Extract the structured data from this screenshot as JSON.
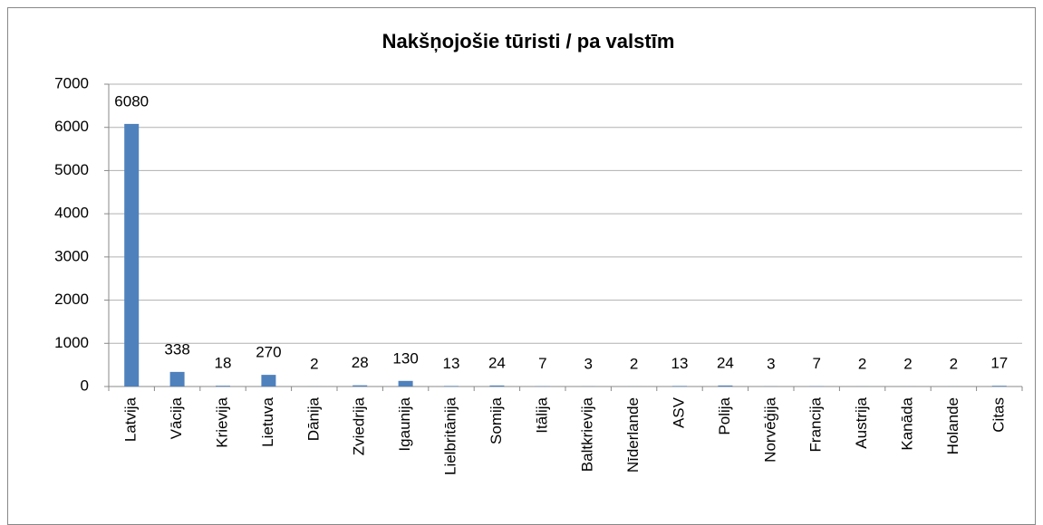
{
  "chart_data": {
    "type": "bar",
    "title": "Nakšņojošie tūristi / pa valstīm",
    "categories": [
      "Latvija",
      "Vācija",
      "Krievija",
      "Lietuva",
      "Dānija",
      "Zviedrija",
      "Igaunija",
      "Lielbritānija",
      "Somija",
      "Itālija",
      "Baltkrievija",
      "Nīderlande",
      "ASV",
      "Polija",
      "Norvēģija",
      "Francija",
      "Austrija",
      "Kanāda",
      "Holande",
      "Citas"
    ],
    "values": [
      6080,
      338,
      18,
      270,
      2,
      28,
      130,
      13,
      24,
      7,
      3,
      2,
      13,
      24,
      3,
      7,
      2,
      2,
      2,
      17
    ],
    "color": "#4f81bd",
    "ylim": [
      0,
      7000
    ],
    "yticks": [
      0,
      1000,
      2000,
      3000,
      4000,
      5000,
      6000,
      7000
    ],
    "grid": true
  }
}
